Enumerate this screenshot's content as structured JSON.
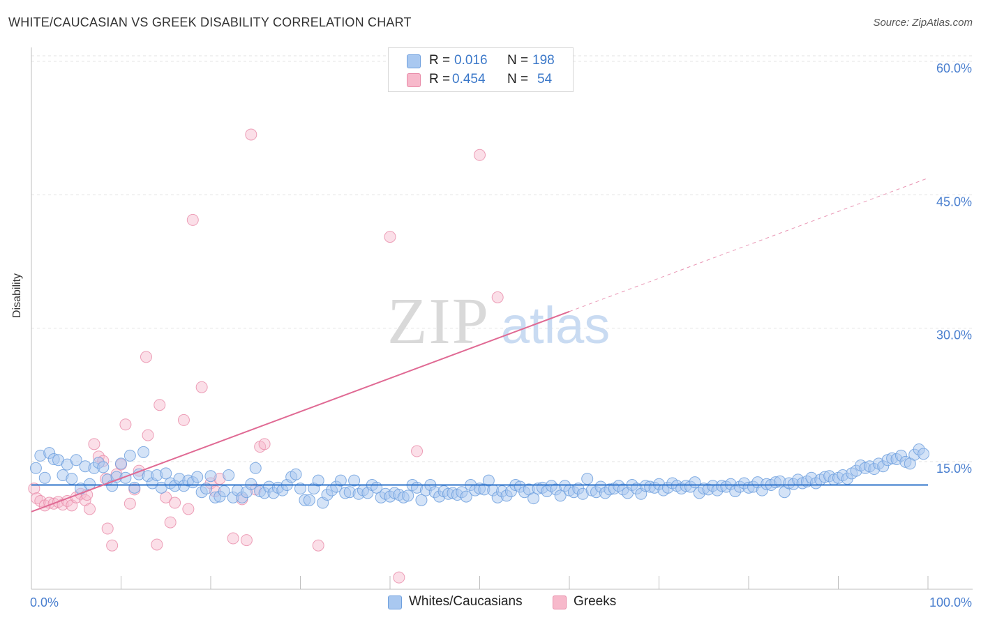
{
  "title": "WHITE/CAUCASIAN VS GREEK DISABILITY CORRELATION CHART",
  "source": "Source: ZipAtlas.com",
  "watermark": {
    "zip": "ZIP",
    "atlas": "atlas"
  },
  "legend": {
    "rows": [
      {
        "r_label": "R =",
        "r_value": "0.016",
        "n_label": "N =",
        "n_value": "198",
        "color": "#a9c8f0"
      },
      {
        "r_label": "R =",
        "r_value": "0.454",
        "n_label": "N =",
        "n_value": "54",
        "color": "#f7b9cb"
      }
    ]
  },
  "bottom_legend": {
    "series1": "Whites/Caucasians",
    "series2": "Greeks"
  },
  "colors": {
    "blue_fill": "#a9c8f0",
    "blue_stroke": "#6fa0de",
    "blue_line": "#2a70c8",
    "pink_fill": "#f7b9cb",
    "pink_stroke": "#e88aa7",
    "pink_line": "#e06a94",
    "tick_text": "#4a7fcf"
  },
  "chart_data": {
    "type": "scatter",
    "title": "WHITE/CAUCASIAN VS GREEK DISABILITY CORRELATION CHART",
    "xlabel": "",
    "ylabel": "Disability",
    "xlim": [
      0,
      100
    ],
    "ylim": [
      0,
      60
    ],
    "x_tick_labels": {
      "min": "0.0%",
      "max": "100.0%"
    },
    "y_ticks": [
      15,
      30,
      45,
      60
    ],
    "y_tick_labels": [
      "15.0%",
      "30.0%",
      "45.0%",
      "60.0%"
    ],
    "series": [
      {
        "name": "Whites/Caucasians",
        "r": 0.016,
        "n": 198,
        "trend": {
          "x": [
            0,
            100
          ],
          "y": [
            13.0,
            13.0
          ],
          "solid_to": 100
        },
        "points": [
          [
            0.5,
            14.9
          ],
          [
            1,
            16.3
          ],
          [
            1.5,
            13.8
          ],
          [
            2,
            16.6
          ],
          [
            2.5,
            15.9
          ],
          [
            3,
            15.8
          ],
          [
            3.5,
            14.1
          ],
          [
            4,
            15.3
          ],
          [
            4.5,
            13.7
          ],
          [
            5,
            15.8
          ],
          [
            5.5,
            12.6
          ],
          [
            6,
            15.1
          ],
          [
            6.5,
            13.1
          ],
          [
            7,
            14.9
          ],
          [
            7.5,
            15.5
          ],
          [
            8,
            15.0
          ],
          [
            8.5,
            13.6
          ],
          [
            9,
            12.9
          ],
          [
            9.5,
            13.9
          ],
          [
            10,
            15.4
          ],
          [
            10.5,
            13.8
          ],
          [
            11,
            16.3
          ],
          [
            11.5,
            12.7
          ],
          [
            12,
            14.2
          ],
          [
            12.5,
            16.7
          ],
          [
            13,
            14.0
          ],
          [
            13.5,
            13.2
          ],
          [
            14,
            14.1
          ],
          [
            14.5,
            12.7
          ],
          [
            15,
            14.3
          ],
          [
            15.5,
            13.2
          ],
          [
            16,
            12.9
          ],
          [
            16.5,
            13.7
          ],
          [
            17,
            12.9
          ],
          [
            17.5,
            13.5
          ],
          [
            18,
            13.3
          ],
          [
            18.5,
            13.9
          ],
          [
            19,
            12.2
          ],
          [
            19.5,
            12.6
          ],
          [
            20,
            14.0
          ],
          [
            20.5,
            11.6
          ],
          [
            21,
            11.7
          ],
          [
            21.5,
            12.3
          ],
          [
            22,
            14.1
          ],
          [
            22.5,
            11.6
          ],
          [
            23,
            12.4
          ],
          [
            23.5,
            11.6
          ],
          [
            24,
            12.2
          ],
          [
            24.5,
            13.1
          ],
          [
            25,
            14.9
          ],
          [
            25.5,
            12.3
          ],
          [
            26,
            12.1
          ],
          [
            26.5,
            12.8
          ],
          [
            27,
            12.1
          ],
          [
            27.5,
            12.7
          ],
          [
            28,
            12.4
          ],
          [
            28.5,
            13.0
          ],
          [
            29,
            13.9
          ],
          [
            29.5,
            14.2
          ],
          [
            30,
            12.6
          ],
          [
            30.5,
            11.3
          ],
          [
            31,
            11.3
          ],
          [
            31.5,
            12.6
          ],
          [
            32,
            13.5
          ],
          [
            32.5,
            11.0
          ],
          [
            33,
            11.9
          ],
          [
            33.5,
            12.4
          ],
          [
            34,
            12.8
          ],
          [
            34.5,
            13.5
          ],
          [
            35,
            12.1
          ],
          [
            35.5,
            12.2
          ],
          [
            36,
            13.5
          ],
          [
            36.5,
            12.0
          ],
          [
            37,
            12.4
          ],
          [
            37.5,
            12.1
          ],
          [
            38,
            13.0
          ],
          [
            38.5,
            12.7
          ],
          [
            39,
            11.6
          ],
          [
            39.5,
            12.0
          ],
          [
            40,
            11.7
          ],
          [
            40.5,
            12.1
          ],
          [
            41,
            11.9
          ],
          [
            41.5,
            11.6
          ],
          [
            42,
            11.8
          ],
          [
            42.5,
            13.0
          ],
          [
            43,
            12.7
          ],
          [
            43.5,
            11.3
          ],
          [
            44,
            12.4
          ],
          [
            44.5,
            13.0
          ],
          [
            45,
            12.2
          ],
          [
            45.5,
            11.7
          ],
          [
            46,
            12.3
          ],
          [
            46.5,
            12.0
          ],
          [
            47,
            12.1
          ],
          [
            47.5,
            11.9
          ],
          [
            48,
            12.2
          ],
          [
            48.5,
            11.7
          ],
          [
            49,
            13.0
          ],
          [
            49.5,
            12.4
          ],
          [
            50,
            12.6
          ],
          [
            50.5,
            12.5
          ],
          [
            51,
            13.5
          ],
          [
            51.5,
            12.4
          ],
          [
            52,
            11.6
          ],
          [
            52.5,
            12.3
          ],
          [
            53,
            11.8
          ],
          [
            53.5,
            12.3
          ],
          [
            54,
            13.0
          ],
          [
            54.5,
            12.8
          ],
          [
            55,
            12.2
          ],
          [
            55.5,
            12.5
          ],
          [
            56,
            11.5
          ],
          [
            56.5,
            12.6
          ],
          [
            57,
            12.7
          ],
          [
            57.5,
            12.3
          ],
          [
            58,
            12.9
          ],
          [
            58.5,
            12.5
          ],
          [
            59,
            11.8
          ],
          [
            59.5,
            12.9
          ],
          [
            60,
            12.4
          ],
          [
            60.5,
            12.2
          ],
          [
            61,
            12.6
          ],
          [
            61.5,
            12.0
          ],
          [
            62,
            13.7
          ],
          [
            62.5,
            12.4
          ],
          [
            63,
            12.2
          ],
          [
            63.5,
            12.8
          ],
          [
            64,
            12.1
          ],
          [
            64.5,
            12.5
          ],
          [
            65,
            12.6
          ],
          [
            65.5,
            12.9
          ],
          [
            66,
            12.5
          ],
          [
            66.5,
            12.1
          ],
          [
            67,
            13.0
          ],
          [
            67.5,
            12.6
          ],
          [
            68,
            12.0
          ],
          [
            68.5,
            12.9
          ],
          [
            69,
            12.8
          ],
          [
            69.5,
            12.7
          ],
          [
            70,
            13.1
          ],
          [
            70.5,
            12.4
          ],
          [
            71,
            12.7
          ],
          [
            71.5,
            13.2
          ],
          [
            72,
            12.9
          ],
          [
            72.5,
            12.6
          ],
          [
            73,
            12.9
          ],
          [
            73.5,
            12.8
          ],
          [
            74,
            13.3
          ],
          [
            74.5,
            12.1
          ],
          [
            75,
            12.6
          ],
          [
            75.5,
            12.5
          ],
          [
            76,
            12.9
          ],
          [
            76.5,
            12.4
          ],
          [
            77,
            12.9
          ],
          [
            77.5,
            12.8
          ],
          [
            78,
            13.1
          ],
          [
            78.5,
            12.3
          ],
          [
            79,
            12.8
          ],
          [
            79.5,
            13.2
          ],
          [
            80,
            12.7
          ],
          [
            80.5,
            12.8
          ],
          [
            81,
            13.3
          ],
          [
            81.5,
            12.4
          ],
          [
            82,
            13.1
          ],
          [
            82.5,
            13.0
          ],
          [
            83,
            13.3
          ],
          [
            83.5,
            13.4
          ],
          [
            84,
            12.2
          ],
          [
            84.5,
            13.2
          ],
          [
            85,
            13.1
          ],
          [
            85.5,
            13.6
          ],
          [
            86,
            13.2
          ],
          [
            86.5,
            13.4
          ],
          [
            87,
            13.8
          ],
          [
            87.5,
            13.2
          ],
          [
            88,
            13.6
          ],
          [
            88.5,
            13.9
          ],
          [
            89,
            14.0
          ],
          [
            89.5,
            13.6
          ],
          [
            90,
            13.8
          ],
          [
            90.5,
            14.1
          ],
          [
            91,
            13.7
          ],
          [
            91.5,
            14.3
          ],
          [
            92,
            14.6
          ],
          [
            92.5,
            15.2
          ],
          [
            93,
            14.9
          ],
          [
            93.5,
            15.1
          ],
          [
            94,
            14.8
          ],
          [
            94.5,
            15.4
          ],
          [
            95,
            15.1
          ],
          [
            95.5,
            15.8
          ],
          [
            96,
            16.0
          ],
          [
            96.5,
            15.9
          ],
          [
            97,
            16.3
          ],
          [
            97.5,
            15.6
          ],
          [
            98,
            15.4
          ],
          [
            98.5,
            16.4
          ],
          [
            99,
            17.0
          ],
          [
            99.5,
            16.5
          ]
        ]
      },
      {
        "name": "Greeks",
        "r": 0.454,
        "n": 54,
        "trend": {
          "x": [
            0,
            100
          ],
          "y": [
            10.0,
            47.5
          ],
          "solid_to": 60
        },
        "points": [
          [
            0.3,
            12.6
          ],
          [
            0.6,
            11.5
          ],
          [
            1,
            11.2
          ],
          [
            1.5,
            10.7
          ],
          [
            2,
            11.0
          ],
          [
            2.5,
            10.9
          ],
          [
            3,
            11.1
          ],
          [
            3.5,
            10.8
          ],
          [
            4,
            11.2
          ],
          [
            4.5,
            10.7
          ],
          [
            5,
            11.6
          ],
          [
            5.5,
            12.0
          ],
          [
            6,
            11.3
          ],
          [
            6.2,
            11.9
          ],
          [
            6.5,
            10.3
          ],
          [
            7,
            17.6
          ],
          [
            7.5,
            16.2
          ],
          [
            8,
            15.7
          ],
          [
            8.3,
            13.7
          ],
          [
            8.5,
            8.1
          ],
          [
            9,
            6.2
          ],
          [
            9.5,
            14.2
          ],
          [
            10,
            15.3
          ],
          [
            10.5,
            19.8
          ],
          [
            11,
            10.9
          ],
          [
            11.5,
            12.5
          ],
          [
            12,
            14.6
          ],
          [
            12.8,
            27.4
          ],
          [
            13,
            18.6
          ],
          [
            14,
            6.3
          ],
          [
            14.3,
            22.0
          ],
          [
            15,
            11.6
          ],
          [
            15.5,
            8.8
          ],
          [
            16,
            11.0
          ],
          [
            17,
            20.3
          ],
          [
            17.5,
            10.3
          ],
          [
            18,
            42.8
          ],
          [
            19,
            24.0
          ],
          [
            20,
            13.2
          ],
          [
            20.5,
            12.3
          ],
          [
            21,
            13.7
          ],
          [
            22.5,
            7.0
          ],
          [
            23.5,
            11.4
          ],
          [
            24,
            6.8
          ],
          [
            24.5,
            52.4
          ],
          [
            25,
            12.5
          ],
          [
            25.5,
            17.3
          ],
          [
            26,
            17.6
          ],
          [
            32,
            6.2
          ],
          [
            40,
            40.9
          ],
          [
            41,
            2.6
          ],
          [
            43,
            16.8
          ],
          [
            50,
            50.1
          ],
          [
            52,
            34.1
          ]
        ]
      }
    ]
  }
}
